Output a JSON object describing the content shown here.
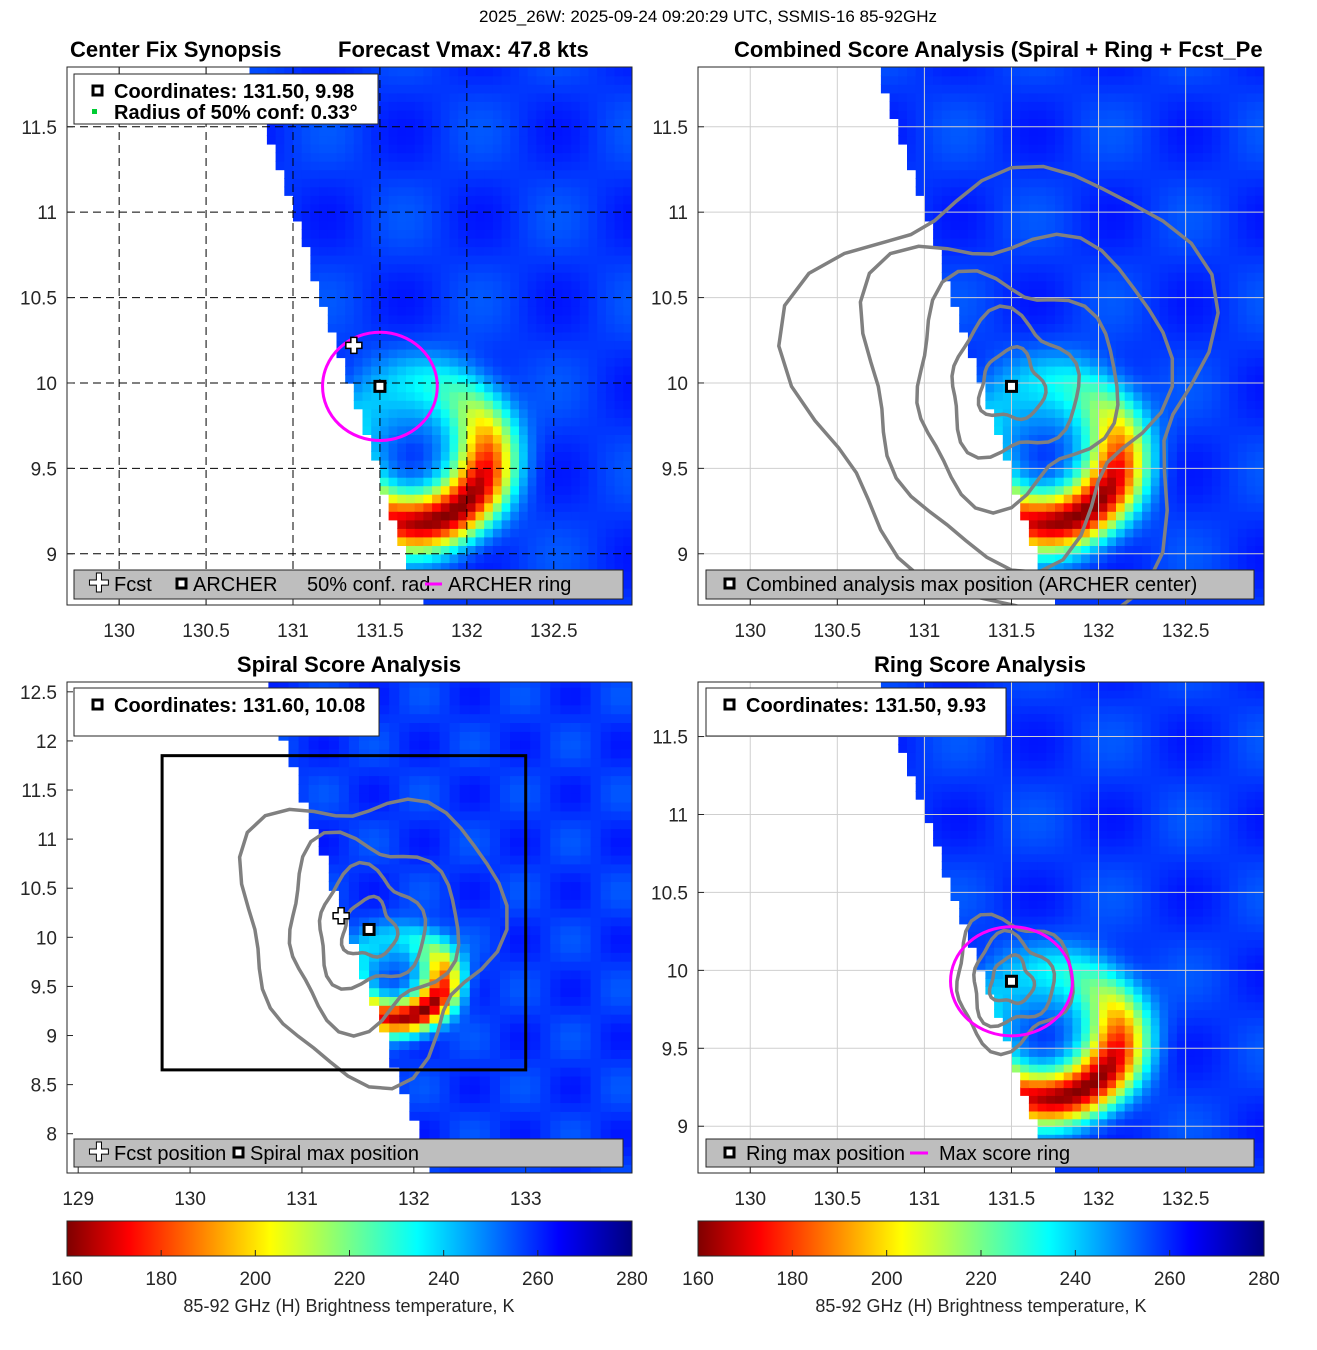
{
  "figure": {
    "suptitle": "2025_26W: 2025-09-24 09:20:29 UTC, SSMIS-16 85-92GHz"
  },
  "colors": {
    "forecast_marker": "#ffffff",
    "archer_marker": "#000000",
    "ring": "#ff00ff",
    "conf_marker": "#00cc33",
    "contour": "#808080",
    "legend_bg": "#bebebe"
  },
  "colorbar": {
    "min": 160,
    "max": 280,
    "ticks": [
      "160",
      "180",
      "200",
      "220",
      "240",
      "260",
      "280"
    ],
    "label": "85-92 GHz (H) Brightness temperature, K",
    "colormap": "jet_reversed"
  },
  "chart_data": [
    {
      "id": "center_fix",
      "type": "heatmap",
      "title_left": "Center Fix Synopsis",
      "title_right": "Forecast Vmax: 47.8 kts",
      "xlim": [
        129.7,
        132.95
      ],
      "ylim": [
        8.7,
        11.85
      ],
      "xticks": [
        "130",
        "130.5",
        "131",
        "131.5",
        "132",
        "132.5"
      ],
      "yticks": [
        "9",
        "9.5",
        "10",
        "10.5",
        "11",
        "11.5"
      ],
      "storm": {
        "lon": 131.7,
        "lat": 9.6
      },
      "archer_center": {
        "lon": 131.5,
        "lat": 9.98
      },
      "forecast_position": {
        "lon": 131.35,
        "lat": 10.22
      },
      "conf_radius_deg": 0.33,
      "info": [
        "Coordinates: 131.50, 9.98",
        "Radius of 50% conf: 0.33°"
      ],
      "legend": [
        "Fcst",
        "ARCHER",
        "50% conf. rad.",
        "ARCHER ring"
      ]
    },
    {
      "id": "combined",
      "type": "heatmap",
      "title": "Combined Score Analysis (Spiral + Ring + Fcst_Pe",
      "xlim": [
        129.7,
        132.95
      ],
      "ylim": [
        8.7,
        11.85
      ],
      "xticks": [
        "130",
        "130.5",
        "131",
        "131.5",
        "132",
        "132.5"
      ],
      "yticks": [
        "9",
        "9.5",
        "10",
        "10.5",
        "11",
        "11.5"
      ],
      "storm": {
        "lon": 131.7,
        "lat": 9.6
      },
      "max_position": {
        "lon": 131.5,
        "lat": 9.98
      },
      "legend": [
        "Combined analysis max position (ARCHER center)"
      ]
    },
    {
      "id": "spiral",
      "type": "heatmap",
      "title": "Spiral Score Analysis",
      "xlim": [
        128.9,
        133.95
      ],
      "ylim": [
        7.6,
        12.6
      ],
      "xticks": [
        "129",
        "130",
        "131",
        "132",
        "133"
      ],
      "yticks": [
        "8",
        "8.5",
        "9",
        "9.5",
        "10",
        "10.5",
        "11",
        "11.5",
        "12",
        "12.5"
      ],
      "storm": {
        "lon": 131.85,
        "lat": 9.6
      },
      "max_position": {
        "lon": 131.6,
        "lat": 10.08
      },
      "forecast_position": {
        "lon": 131.35,
        "lat": 10.22
      },
      "search_box": {
        "lon_min": 129.75,
        "lon_max": 133.0,
        "lat_min": 8.65,
        "lat_max": 11.85
      },
      "info": [
        "Coordinates: 131.60, 10.08"
      ],
      "legend": [
        "Fcst position",
        "Spiral max position"
      ]
    },
    {
      "id": "ring",
      "type": "heatmap",
      "title": "Ring Score Analysis",
      "xlim": [
        129.7,
        132.95
      ],
      "ylim": [
        8.7,
        11.85
      ],
      "xticks": [
        "130",
        "130.5",
        "131",
        "131.5",
        "132",
        "132.5"
      ],
      "yticks": [
        "9",
        "9.5",
        "10",
        "10.5",
        "11",
        "11.5"
      ],
      "storm": {
        "lon": 131.7,
        "lat": 9.6
      },
      "max_position": {
        "lon": 131.5,
        "lat": 9.93
      },
      "ring_radius_deg": 0.35,
      "info": [
        "Coordinates: 131.50, 9.93"
      ],
      "legend": [
        "Ring max position",
        "Max score ring"
      ]
    }
  ]
}
